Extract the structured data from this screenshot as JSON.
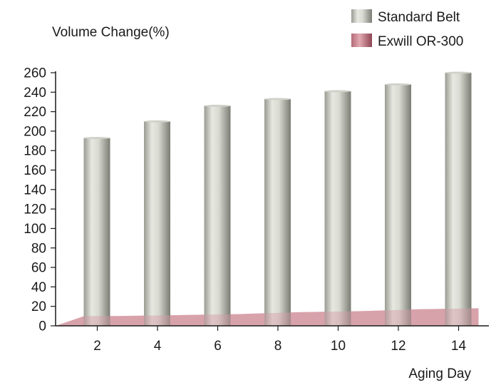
{
  "chart_data": {
    "type": "bar",
    "ylabel": "Volume Change(%)",
    "xlabel": "Aging Day",
    "categories": [
      "2",
      "4",
      "6",
      "8",
      "10",
      "12",
      "14"
    ],
    "ylim": [
      0,
      260
    ],
    "yticks": [
      0,
      20,
      40,
      60,
      80,
      100,
      120,
      140,
      160,
      180,
      200,
      220,
      240,
      260
    ],
    "series": [
      {
        "name": "Standard Belt",
        "style": "bar",
        "color": "#c9cbc3",
        "values": [
          193,
          210,
          226,
          233,
          241,
          248,
          260
        ]
      },
      {
        "name": "Exwill OR-300",
        "style": "area",
        "color": "#d59aa3",
        "values": [
          10,
          11,
          12,
          14,
          15,
          17,
          18
        ]
      }
    ],
    "legend_position": "top-right",
    "grid": false
  }
}
